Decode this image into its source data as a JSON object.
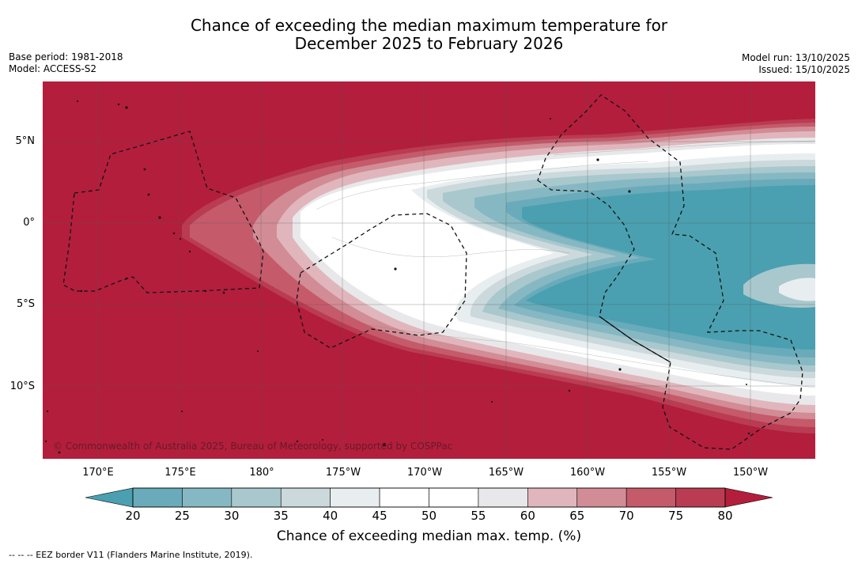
{
  "title": {
    "line1": "Chance of exceeding the median maximum temperature for",
    "line2": "December 2025 to February 2026"
  },
  "meta_left": {
    "base_period": "Base period: 1981-2018",
    "model": "Model: ACCESS-S2"
  },
  "meta_right": {
    "model_run": "Model run: 13/10/2025",
    "issued": "Issued: 15/10/2025"
  },
  "map": {
    "longitude_labels": [
      "170°E",
      "175°E",
      "180°",
      "175°W",
      "170°W",
      "165°W",
      "160°W",
      "155°W",
      "150°W"
    ],
    "latitude_labels": [
      "5°N",
      "0°",
      "5°S",
      "10°S"
    ],
    "copyright": "© Commonwealth of Australia 2025, Bureau of Meteorology, supported by COSPPac"
  },
  "colorbar": {
    "ticks": [
      "20",
      "25",
      "30",
      "35",
      "40",
      "45",
      "50",
      "55",
      "60",
      "65",
      "70",
      "75",
      "80"
    ],
    "colors": [
      "#4aa0b0",
      "#69abba",
      "#86b8c3",
      "#a8c8cd",
      "#ccd9dc",
      "#e8eef0",
      "#ffffff",
      "#ffffff",
      "#e8e8ea",
      "#e0b6bc",
      "#d18c95",
      "#c55a6b",
      "#b93c52",
      "#b31e3c"
    ],
    "label": "Chance of exceeding median max. temp. (%)"
  },
  "footer": "--  --  -- EEZ border V11 (Flanders Marine Institute, 2019)."
}
